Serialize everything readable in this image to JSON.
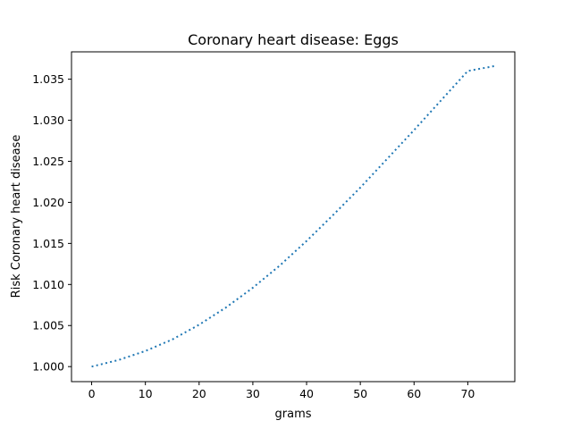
{
  "chart_data": {
    "type": "line",
    "title": "Coronary heart disease: Eggs",
    "xlabel": "grams",
    "ylabel": "Risk Coronary heart disease",
    "xlim": [
      -3.75,
      78.75
    ],
    "ylim": [
      0.99817,
      1.03833
    ],
    "xticks": [
      0,
      10,
      20,
      30,
      40,
      50,
      60,
      70
    ],
    "yticks": [
      1.0,
      1.005,
      1.01,
      1.015,
      1.02,
      1.025,
      1.03,
      1.035
    ],
    "xtick_labels": [
      "0",
      "10",
      "20",
      "30",
      "40",
      "50",
      "60",
      "70"
    ],
    "ytick_labels": [
      "1.000",
      "1.005",
      "1.010",
      "1.015",
      "1.020",
      "1.025",
      "1.030",
      "1.035"
    ],
    "grid": false,
    "series": [
      {
        "line_style": "dotted",
        "color": "#1f77b4",
        "x": [
          0,
          5,
          10,
          15,
          20,
          25,
          30,
          35,
          40,
          45,
          50,
          55,
          60,
          65,
          70,
          75
        ],
        "y": [
          1.0,
          1.0008,
          1.0019,
          1.0033,
          1.0051,
          1.0072,
          1.0096,
          1.0123,
          1.0153,
          1.0185,
          1.0218,
          1.0253,
          1.0288,
          1.0324,
          1.036,
          1.0366
        ]
      }
    ]
  }
}
